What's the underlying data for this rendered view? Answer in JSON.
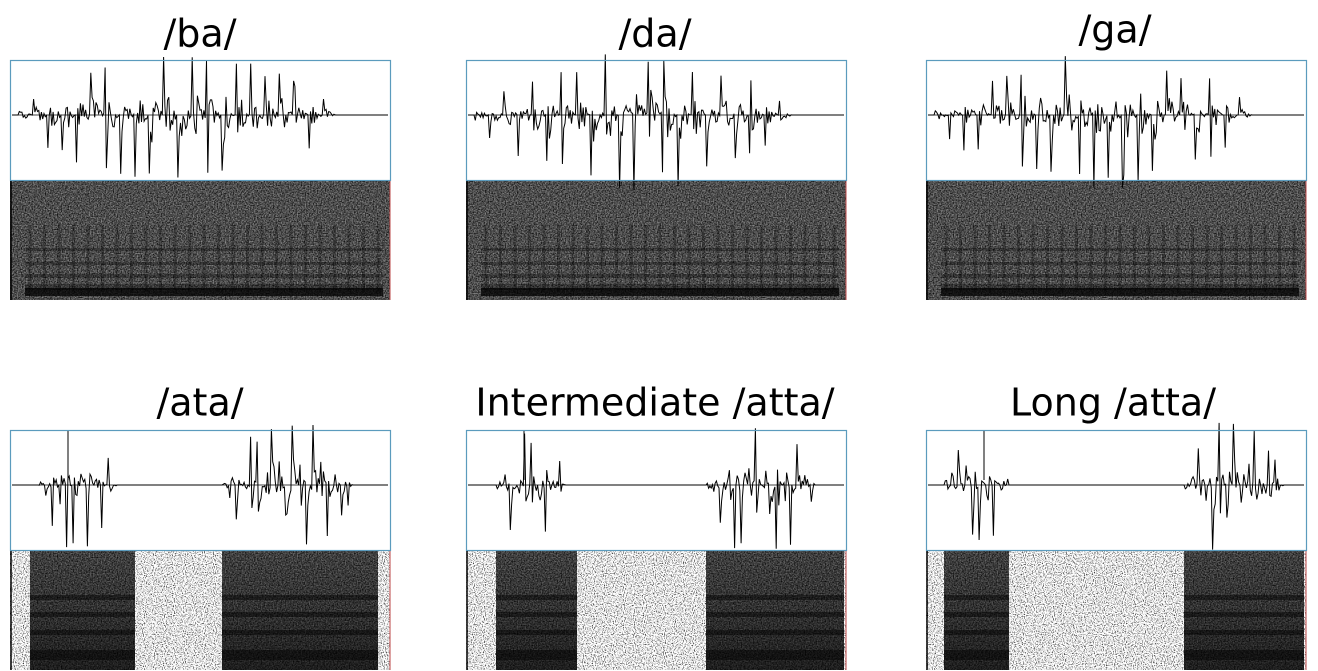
{
  "panels": [
    {
      "label": "/ba/"
    },
    {
      "label": "/da/"
    },
    {
      "label": "/ga/"
    },
    {
      "label": "/ata/"
    },
    {
      "label": "Intermediate /atta/"
    },
    {
      "label": "Long /atta/"
    }
  ]
}
